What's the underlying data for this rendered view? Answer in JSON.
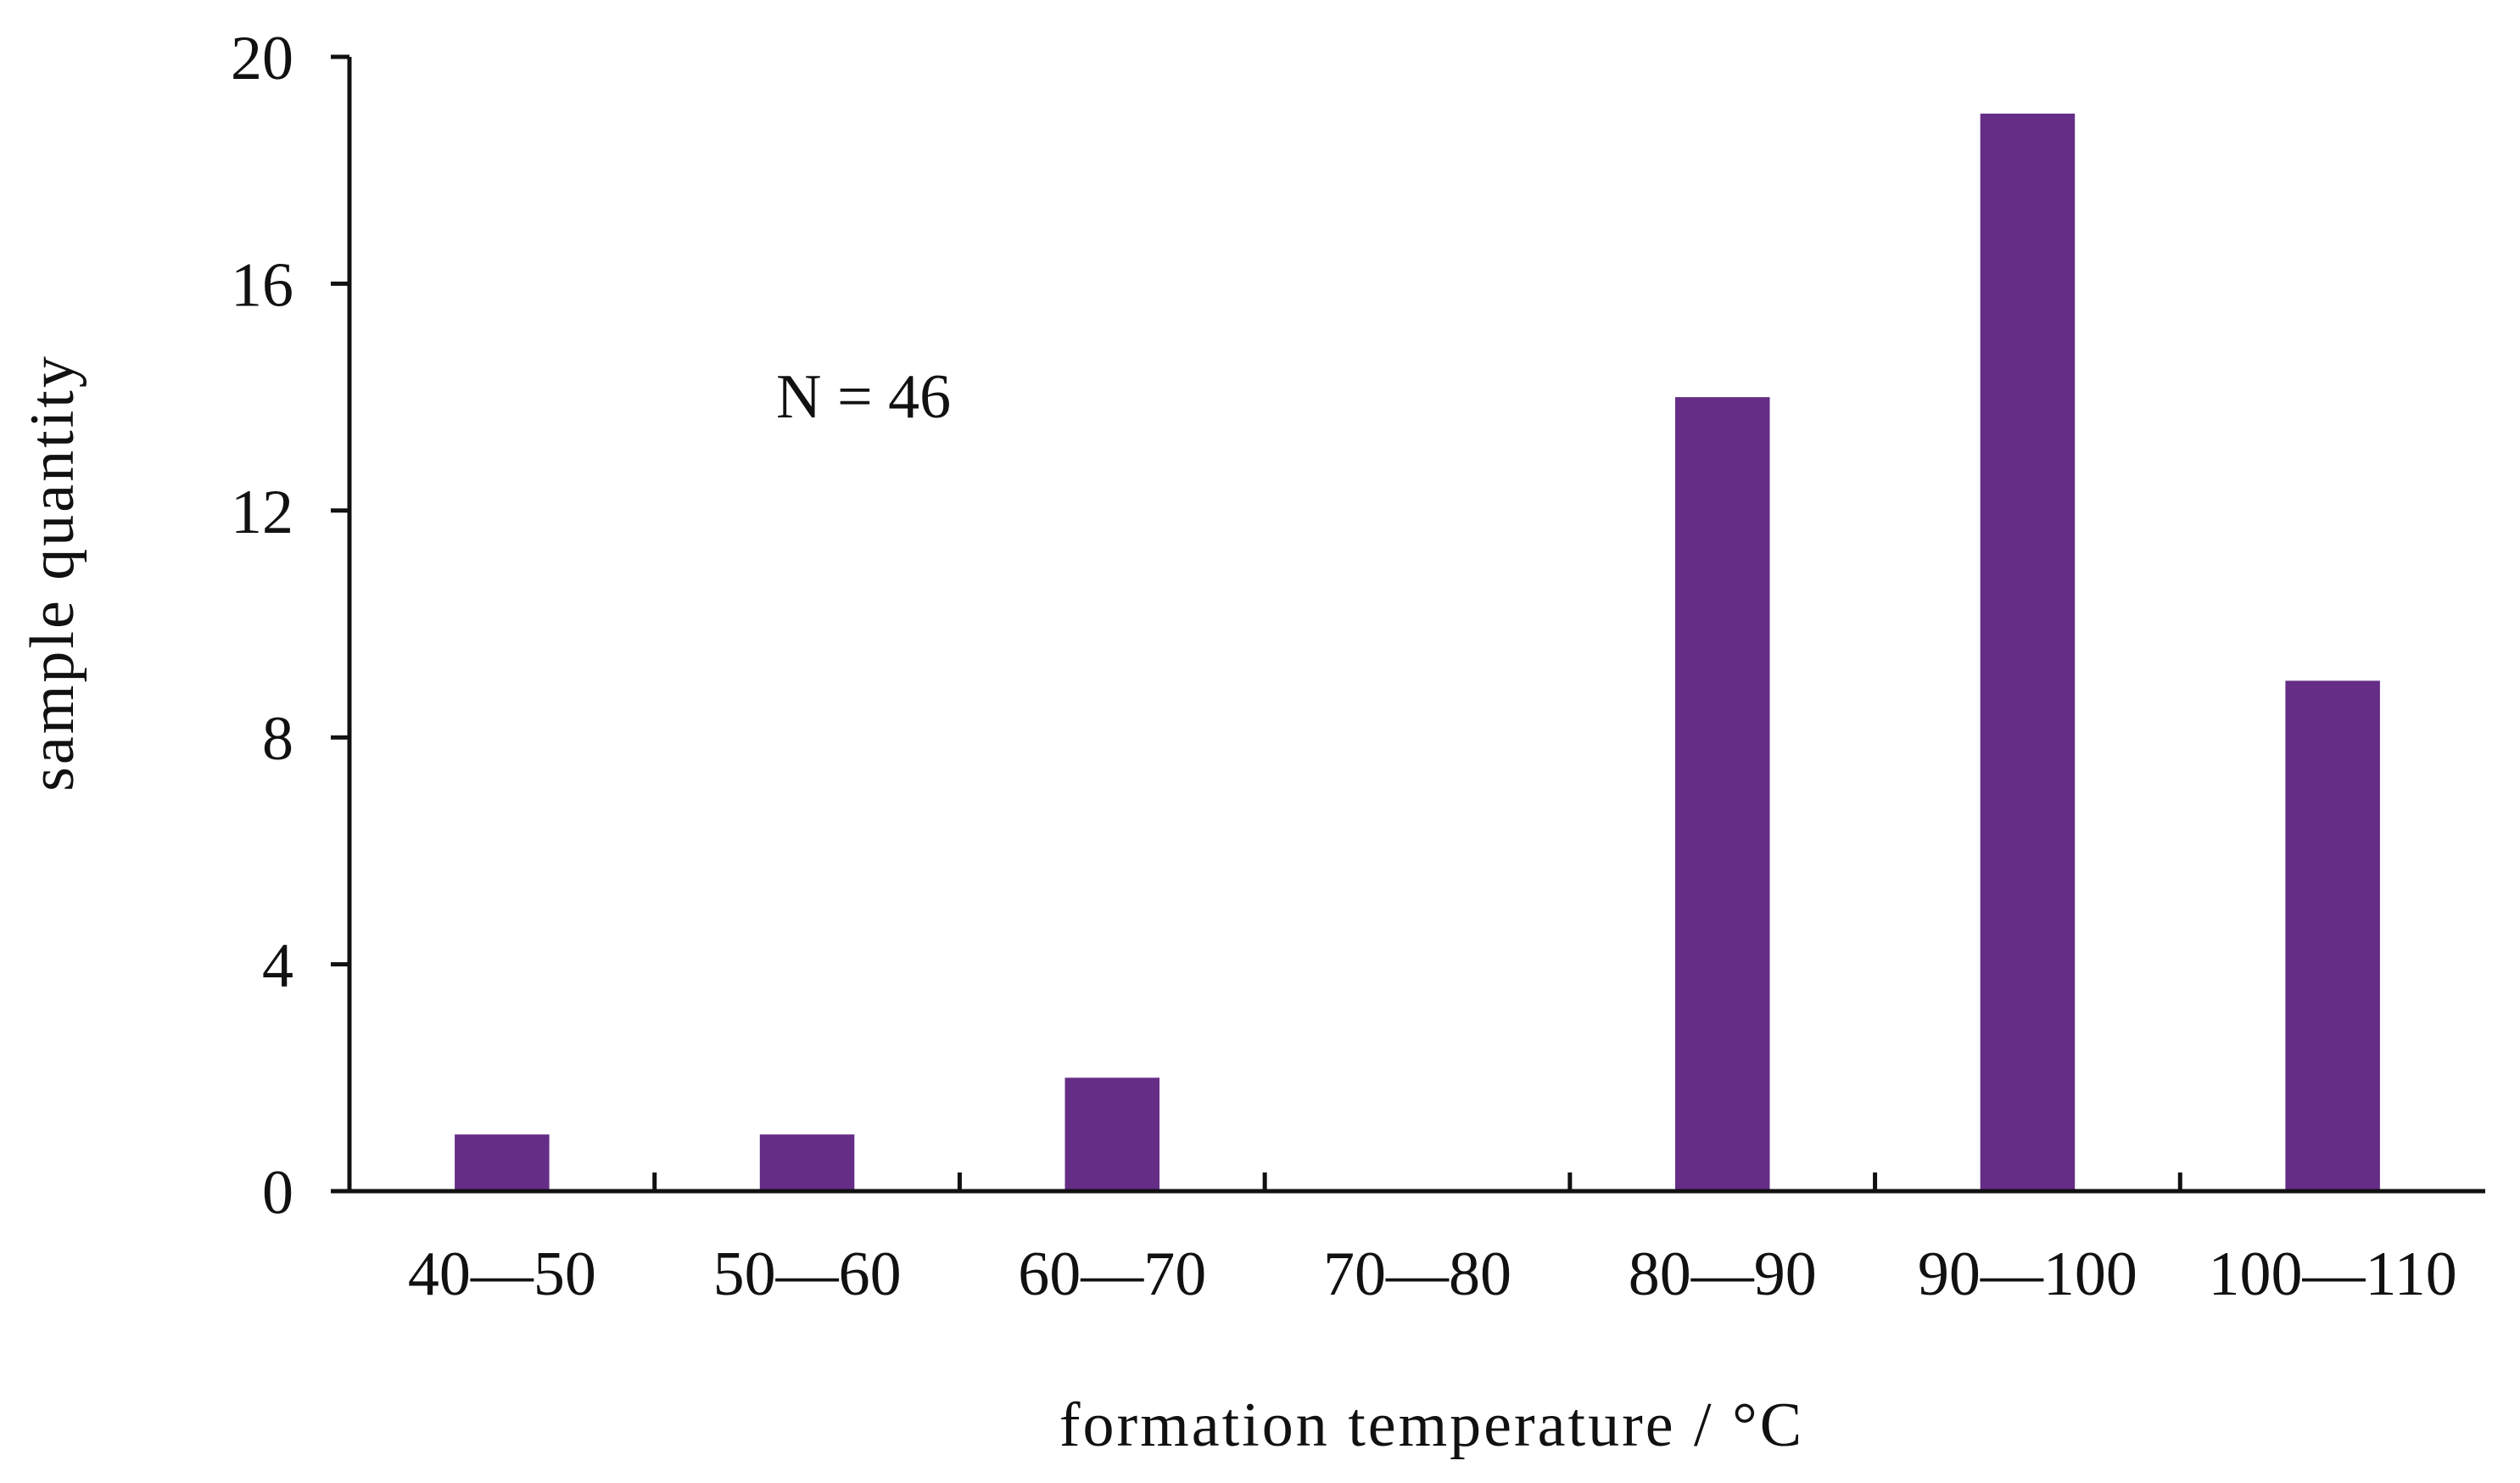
{
  "chart_data": {
    "type": "bar",
    "categories": [
      "40—50",
      "50—60",
      "60—70",
      "70—80",
      "80—90",
      "90—100",
      "100—110"
    ],
    "values": [
      1,
      1,
      2,
      0,
      14,
      19,
      9
    ],
    "title": "",
    "xlabel": "formation temperature / °C",
    "ylabel": "sample quantity",
    "ylim": [
      0,
      20
    ],
    "yticks": [
      0,
      4,
      8,
      12,
      16,
      20
    ],
    "annotation": "N = 46",
    "grid": false,
    "legend": "none",
    "bar_color": "#652D86",
    "axis_color": "#111111"
  }
}
